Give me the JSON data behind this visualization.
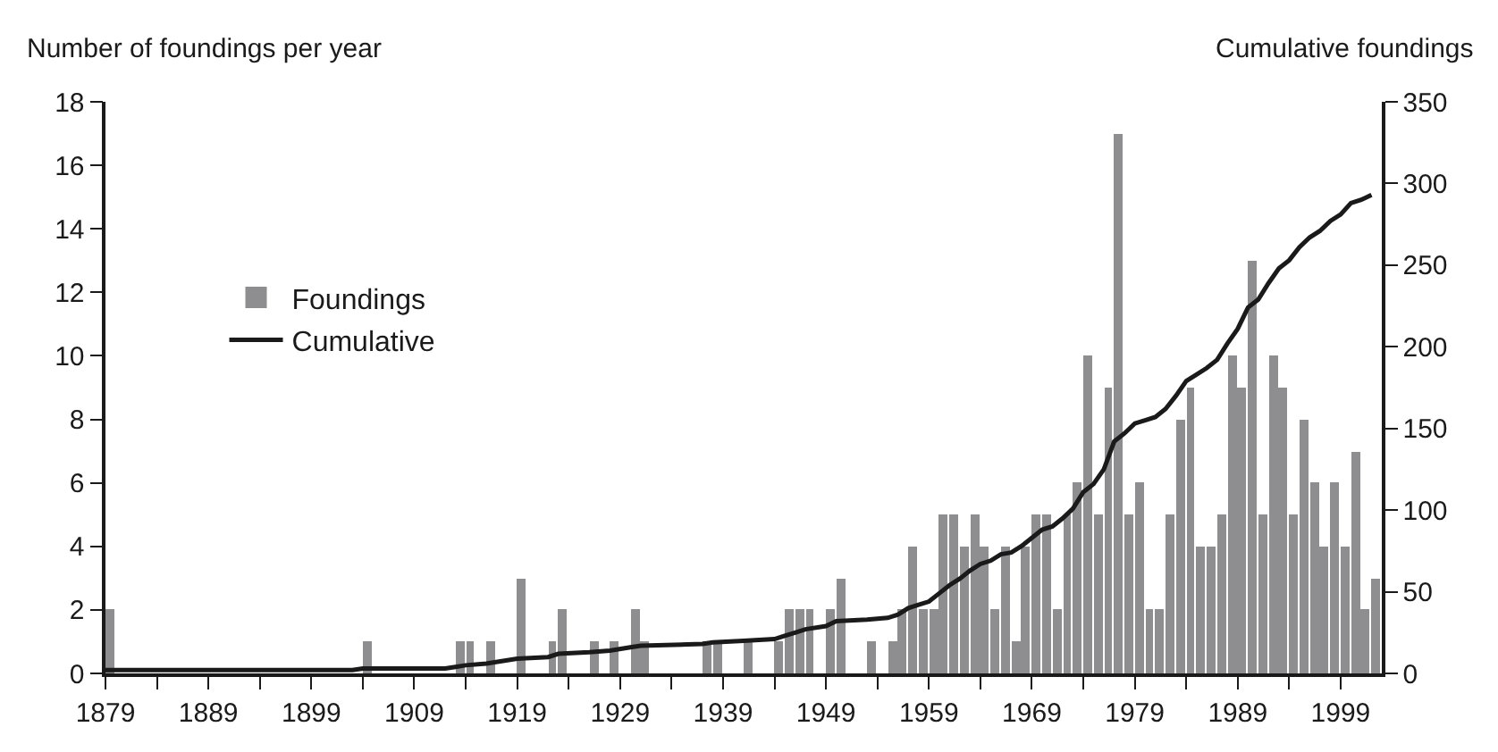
{
  "chart_data": {
    "type": "bar",
    "ylabel": "Number of foundings per year",
    "y2label": "Cumulative foundings",
    "series": [
      {
        "name": "Foundings",
        "color": "#8e8e90",
        "x": [
          1879,
          1904,
          1913,
          1914,
          1916,
          1919,
          1922,
          1923,
          1926,
          1928,
          1930,
          1931,
          1937,
          1938,
          1941,
          1944,
          1945,
          1946,
          1947,
          1949,
          1950,
          1953,
          1955,
          1956,
          1957,
          1958,
          1959,
          1960,
          1961,
          1962,
          1963,
          1964,
          1965,
          1966,
          1967,
          1968,
          1969,
          1970,
          1971,
          1972,
          1973,
          1974,
          1975,
          1976,
          1977,
          1978,
          1979,
          1980,
          1981,
          1982,
          1983,
          1984,
          1985,
          1986,
          1987,
          1988,
          1989,
          1990,
          1991,
          1992,
          1993,
          1994,
          1995,
          1996,
          1997,
          1998,
          1999,
          2000,
          2001,
          2002
        ],
        "values": [
          2,
          1,
          1,
          1,
          1,
          3,
          1,
          2,
          1,
          1,
          2,
          1,
          1,
          1,
          1,
          1,
          2,
          2,
          2,
          2,
          3,
          1,
          1,
          2,
          4,
          2,
          2,
          5,
          5,
          4,
          5,
          4,
          2,
          4,
          1,
          4,
          5,
          5,
          2,
          5,
          6,
          10,
          5,
          9,
          17,
          5,
          6,
          2,
          2,
          5,
          8,
          9,
          4,
          4,
          5,
          10,
          9,
          13,
          5,
          10,
          9,
          5,
          8,
          6,
          4,
          6,
          4,
          7,
          2,
          3
        ]
      },
      {
        "name": "Cumulative",
        "type": "line",
        "axis": "y2",
        "color": "#1a1a1a",
        "x": [
          1879,
          1903,
          1904,
          1912,
          1913,
          1914,
          1916,
          1919,
          1922,
          1923,
          1926,
          1928,
          1930,
          1931,
          1937,
          1938,
          1941,
          1944,
          1945,
          1946,
          1947,
          1949,
          1950,
          1953,
          1955,
          1956,
          1957,
          1958,
          1959,
          1960,
          1961,
          1962,
          1963,
          1964,
          1965,
          1966,
          1967,
          1968,
          1969,
          1970,
          1971,
          1972,
          1973,
          1974,
          1975,
          1976,
          1977,
          1978,
          1979,
          1980,
          1981,
          1982,
          1983,
          1984,
          1985,
          1986,
          1987,
          1988,
          1989,
          1990,
          1991,
          1992,
          1993,
          1994,
          1995,
          1996,
          1997,
          1998,
          1999,
          2000,
          2001,
          2002
        ],
        "values": [
          2,
          2,
          3,
          3,
          4,
          5,
          6,
          9,
          10,
          12,
          13,
          14,
          16,
          17,
          18,
          19,
          20,
          21,
          23,
          25,
          27,
          29,
          32,
          33,
          34,
          36,
          40,
          42,
          44,
          49,
          54,
          58,
          63,
          67,
          69,
          73,
          74,
          78,
          83,
          88,
          90,
          95,
          101,
          111,
          116,
          125,
          142,
          147,
          153,
          155,
          157,
          162,
          170,
          179,
          183,
          187,
          192,
          202,
          211,
          224,
          229,
          239,
          248,
          253,
          261,
          267,
          271,
          277,
          281,
          288,
          290,
          293
        ]
      }
    ],
    "xlim": [
      1879,
      2003
    ],
    "xticks": [
      1879,
      {
        "value": 1884,
        "label": null
      },
      1889,
      {
        "value": 1894,
        "label": null
      },
      1899,
      {
        "value": 1904,
        "label": null
      },
      1909,
      {
        "value": 1914,
        "label": null
      },
      1919,
      {
        "value": 1924,
        "label": null
      },
      1929,
      {
        "value": 1934,
        "label": null
      },
      1939,
      {
        "value": 1944,
        "label": null
      },
      1949,
      {
        "value": 1954,
        "label": null
      },
      1959,
      {
        "value": 1964,
        "label": null
      },
      1969,
      {
        "value": 1974,
        "label": null
      },
      1979,
      {
        "value": 1984,
        "label": null
      },
      1989,
      {
        "value": 1994,
        "label": null
      },
      1999
    ],
    "ylim": [
      0,
      18
    ],
    "yticks": [
      0,
      2,
      4,
      6,
      8,
      10,
      12,
      14,
      16,
      18
    ],
    "y2lim": [
      0,
      350
    ],
    "y2ticks": [
      0,
      50,
      100,
      150,
      200,
      250,
      300,
      350
    ],
    "grid": false,
    "legend": "left",
    "marker": "none",
    "line_style": "solid"
  }
}
